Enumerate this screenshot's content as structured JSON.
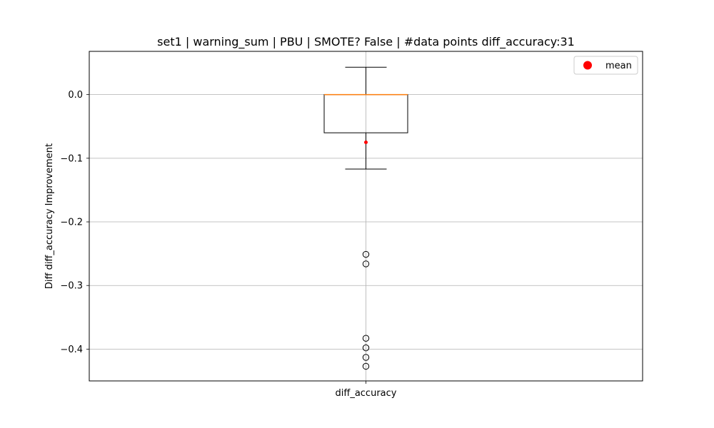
{
  "chart_data": {
    "type": "box",
    "title": "set1 | warning_sum | PBU | SMOTE? False | #data points diff_accuracy:31",
    "xlabel": "",
    "ylabel": "Diff diff_accuracy Improvement",
    "categories": [
      "diff_accuracy"
    ],
    "ylim": [
      -0.45,
      0.068
    ],
    "yticks": [
      0.0,
      -0.1,
      -0.2,
      -0.3,
      -0.4
    ],
    "ytick_labels": [
      "0.0",
      "−0.1",
      "−0.2",
      "−0.3",
      "−0.4"
    ],
    "grid": true,
    "legend": {
      "position": "top-right",
      "entries": [
        {
          "label": "mean",
          "color": "#ff0000"
        }
      ]
    },
    "boxes": [
      {
        "name": "diff_accuracy",
        "whisker_high": 0.043,
        "q3": 0.0,
        "median": 0.0,
        "q1": -0.06,
        "whisker_low": -0.117,
        "mean": -0.075,
        "outliers": [
          -0.251,
          -0.266,
          -0.383,
          -0.398,
          -0.413,
          -0.427
        ]
      }
    ],
    "colors": {
      "median": "#ff7f0e",
      "mean": "#ff0000",
      "box": "#000000",
      "grid": "#b0b0b0"
    }
  }
}
